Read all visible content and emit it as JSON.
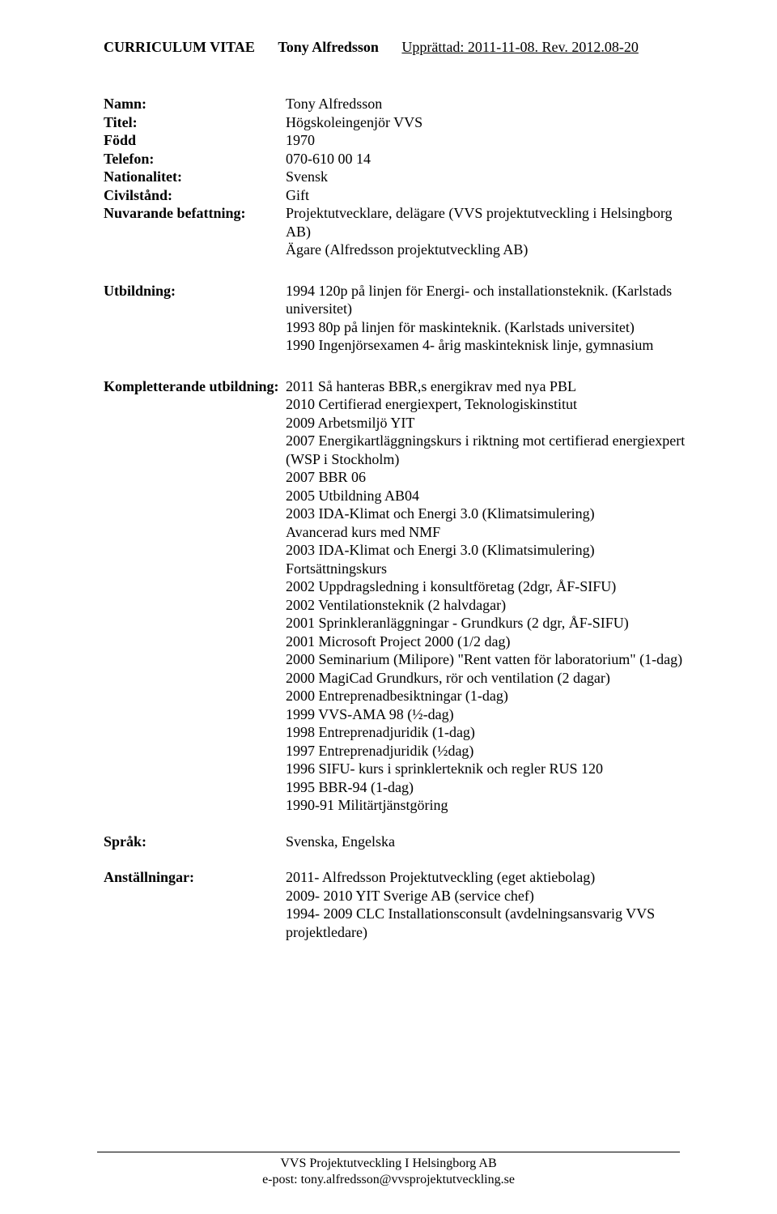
{
  "header": {
    "cv_label": "CURRICULUM VITAE",
    "name": "Tony Alfredsson",
    "date_line": "Upprättad: 2011-11-08. Rev. 2012.08-20"
  },
  "info": {
    "name_label": "Namn:",
    "name_value": "Tony Alfredsson",
    "title_label": "Titel:",
    "title_value": "Högskoleingenjör VVS",
    "born_label": "Född",
    "born_value": "1970",
    "phone_label": "Telefon:",
    "phone_value": "070-610 00 14",
    "nationality_label": "Nationalitet:",
    "nationality_value": "Svensk",
    "civil_label": "Civilstånd:",
    "civil_value": "Gift",
    "position_label": "Nuvarande befattning:",
    "position_line1": "Projektutvecklare, delägare (VVS projektutveckling i Helsingborg AB)",
    "position_line2": "Ägare (Alfredsson projektutveckling AB)"
  },
  "education": {
    "label": "Utbildning:",
    "lines": [
      "1994 120p på linjen för Energi- och installationsteknik. (Karlstads universitet)",
      "1993 80p på linjen för maskinteknik. (Karlstads universitet)",
      "1990 Ingenjörsexamen 4- årig maskinteknisk linje, gymnasium"
    ]
  },
  "supplementary": {
    "label": "Kompletterande utbildning:",
    "lines": [
      "2011 Så hanteras BBR,s energikrav med nya PBL",
      "2010 Certifierad energiexpert, Teknologiskinstitut",
      "2009 Arbetsmiljö YIT",
      "2007 Energikartläggningskurs i riktning mot certifierad energiexpert (WSP i Stockholm)",
      "2007 BBR 06",
      "2005 Utbildning AB04",
      "2003 IDA-Klimat och Energi 3.0 (Klimatsimulering)",
      "Avancerad kurs med NMF",
      "2003 IDA-Klimat och Energi 3.0 (Klimatsimulering)",
      "Fortsättningskurs",
      "2002 Uppdragsledning i konsultföretag (2dgr, ÅF-SIFU)",
      "2002 Ventilationsteknik (2 halvdagar)",
      "2001 Sprinkleranläggningar - Grundkurs (2 dgr, ÅF-SIFU)",
      "2001 Microsoft Project 2000 (1/2 dag)",
      "2000 Seminarium (Milipore) \"Rent vatten för laboratorium\" (1-dag)",
      "2000 MagiCad Grundkurs, rör och ventilation (2 dagar)",
      "2000 Entreprenadbesiktningar (1-dag)",
      "1999 VVS-AMA 98 (½-dag)",
      "1998 Entreprenadjuridik (1-dag)",
      "1997 Entreprenadjuridik (½dag)",
      "1996 SIFU- kurs i sprinklerteknik och regler RUS 120",
      "1995 BBR-94 (1-dag)",
      "1990-91 Militärtjänstgöring"
    ]
  },
  "language": {
    "label": "Språk:",
    "value": "Svenska, Engelska"
  },
  "employment": {
    "label": "Anställningar:",
    "lines": [
      "2011- Alfredsson Projektutveckling (eget aktiebolag)",
      "2009- 2010 YIT Sverige AB (service chef)",
      "1994- 2009 CLC Installationsconsult (avdelningsansvarig VVS projektledare)"
    ]
  },
  "footer": {
    "line1": "VVS Projektutveckling I Helsingborg AB",
    "line2": "e-post: tony.alfredsson@vvsprojektutveckling.se"
  }
}
